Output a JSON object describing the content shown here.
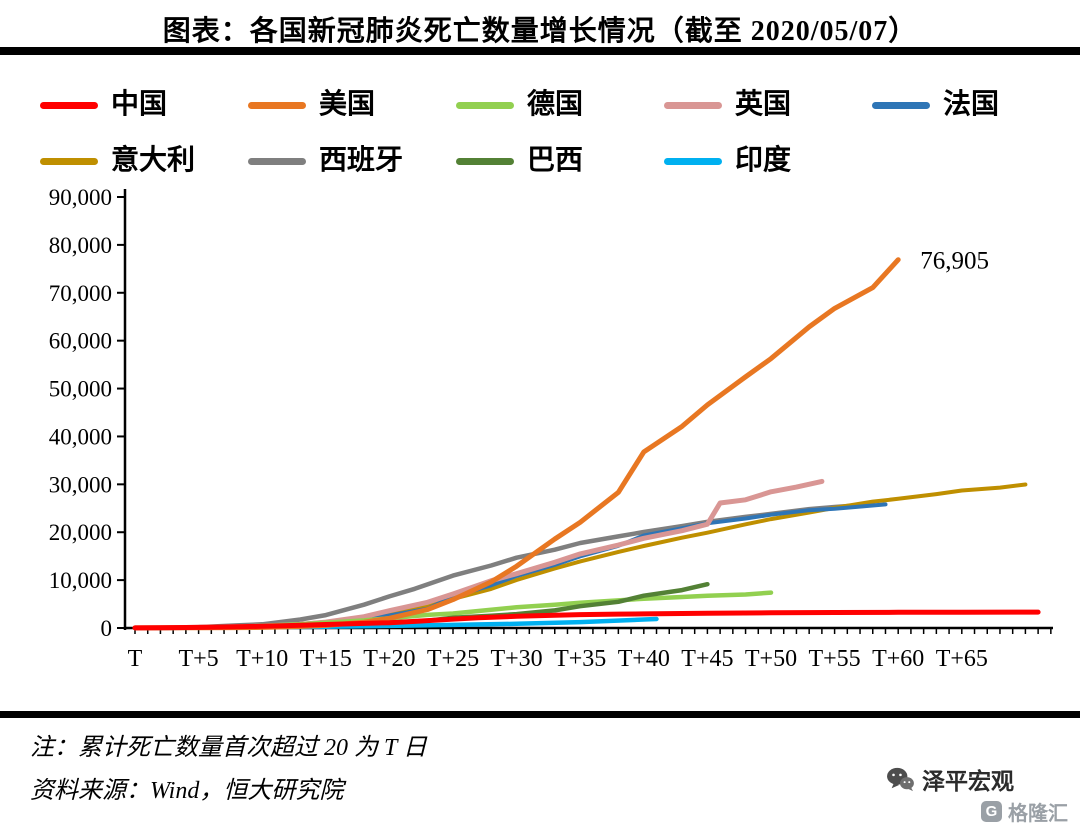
{
  "title": "图表：各国新冠肺炎死亡数量增长情况（截至 2020/05/07）",
  "notes": {
    "definition": "注：累计死亡数量首次超过 20 为 T 日",
    "source": "资料来源：Wind，恒大研究院"
  },
  "branding": {
    "zeping": "泽平宏观",
    "gelonghui": "格隆汇",
    "gelonghui_logo": "G"
  },
  "chart_data": {
    "type": "line",
    "title": "各国新冠肺炎死亡数量增长情况（截至 2020/05/07）",
    "xlabel": "",
    "ylabel": "",
    "grid": false,
    "legend_position": "top",
    "x_axis": {
      "labels": [
        "T",
        "T+5",
        "T+10",
        "T+15",
        "T+20",
        "T+25",
        "T+30",
        "T+35",
        "T+40",
        "T+45",
        "T+50",
        "T+55",
        "T+60",
        "T+65"
      ],
      "label_step": 5,
      "minor_tick_step": 1,
      "max": 72
    },
    "y_axis": {
      "min": 0,
      "max": 90000,
      "step": 10000,
      "labels": [
        "0",
        "10,000",
        "20,000",
        "30,000",
        "40,000",
        "50,000",
        "60,000",
        "70,000",
        "80,000",
        "90,000"
      ]
    },
    "annotation": {
      "text": "76,905",
      "x": 60,
      "y": 76905
    },
    "draw_order": [
      6,
      5,
      4,
      3,
      2,
      7,
      8,
      1,
      0
    ],
    "series": [
      {
        "id": "china",
        "name": "中国",
        "color": "#FF0000",
        "width": 5,
        "points": [
          [
            0,
            25
          ],
          [
            2,
            56
          ],
          [
            5,
            131
          ],
          [
            7,
            213
          ],
          [
            10,
            361
          ],
          [
            12,
            491
          ],
          [
            15,
            722
          ],
          [
            17,
            908
          ],
          [
            20,
            1117
          ],
          [
            22,
            1368
          ],
          [
            25,
            1868
          ],
          [
            27,
            2120
          ],
          [
            30,
            2442
          ],
          [
            33,
            2662
          ],
          [
            35,
            2788
          ],
          [
            38,
            2912
          ],
          [
            40,
            2943
          ],
          [
            45,
            3097
          ],
          [
            50,
            3176
          ],
          [
            55,
            3237
          ],
          [
            60,
            3270
          ],
          [
            65,
            3295
          ],
          [
            71,
            3326
          ]
        ]
      },
      {
        "id": "usa",
        "name": "美国",
        "color": "#E87722",
        "width": 5,
        "points": [
          [
            0,
            22
          ],
          [
            3,
            36
          ],
          [
            5,
            41
          ],
          [
            8,
            85
          ],
          [
            10,
            118
          ],
          [
            13,
            307
          ],
          [
            15,
            552
          ],
          [
            18,
            1201
          ],
          [
            20,
            2026
          ],
          [
            23,
            3873
          ],
          [
            25,
            5926
          ],
          [
            28,
            9619
          ],
          [
            30,
            12895
          ],
          [
            33,
            18586
          ],
          [
            35,
            22073
          ],
          [
            38,
            28326
          ],
          [
            40,
            36773
          ],
          [
            43,
            42094
          ],
          [
            45,
            46583
          ],
          [
            48,
            52459
          ],
          [
            50,
            56245
          ],
          [
            53,
            62906
          ],
          [
            55,
            66746
          ],
          [
            58,
            71078
          ],
          [
            60,
            76905
          ]
        ]
      },
      {
        "id": "germany",
        "name": "德国",
        "color": "#92D050",
        "width": 4.5,
        "points": [
          [
            0,
            26
          ],
          [
            3,
            68
          ],
          [
            5,
            123
          ],
          [
            8,
            267
          ],
          [
            10,
            433
          ],
          [
            13,
            775
          ],
          [
            15,
            1107
          ],
          [
            18,
            1584
          ],
          [
            20,
            2016
          ],
          [
            23,
            2736
          ],
          [
            25,
            3022
          ],
          [
            28,
            3804
          ],
          [
            30,
            4352
          ],
          [
            33,
            4862
          ],
          [
            35,
            5279
          ],
          [
            38,
            5760
          ],
          [
            40,
            6126
          ],
          [
            43,
            6467
          ],
          [
            45,
            6736
          ],
          [
            48,
            6993
          ],
          [
            50,
            7392
          ]
        ]
      },
      {
        "id": "uk",
        "name": "英国",
        "color": "#D99694",
        "width": 5,
        "points": [
          [
            0,
            21
          ],
          [
            3,
            71
          ],
          [
            5,
            144
          ],
          [
            8,
            281
          ],
          [
            10,
            422
          ],
          [
            13,
            759
          ],
          [
            15,
            1228
          ],
          [
            18,
            2352
          ],
          [
            20,
            3605
          ],
          [
            23,
            5373
          ],
          [
            25,
            7097
          ],
          [
            28,
            9875
          ],
          [
            30,
            11329
          ],
          [
            33,
            13729
          ],
          [
            35,
            15464
          ],
          [
            38,
            17337
          ],
          [
            40,
            18738
          ],
          [
            43,
            20319
          ],
          [
            45,
            21678
          ],
          [
            46,
            26097
          ],
          [
            48,
            26771
          ],
          [
            50,
            28446
          ],
          [
            52,
            29427
          ],
          [
            54,
            30615
          ]
        ]
      },
      {
        "id": "france",
        "name": "法国",
        "color": "#2E75B6",
        "width": 4,
        "points": [
          [
            0,
            25
          ],
          [
            3,
            61
          ],
          [
            5,
            91
          ],
          [
            8,
            244
          ],
          [
            10,
            372
          ],
          [
            13,
            674
          ],
          [
            15,
            1100
          ],
          [
            18,
            1995
          ],
          [
            20,
            2606
          ],
          [
            23,
            4032
          ],
          [
            25,
            6507
          ],
          [
            28,
            8911
          ],
          [
            30,
            10869
          ],
          [
            33,
            13197
          ],
          [
            35,
            14967
          ],
          [
            38,
            17167
          ],
          [
            40,
            19323
          ],
          [
            43,
            20796
          ],
          [
            45,
            21856
          ],
          [
            48,
            22856
          ],
          [
            50,
            23660
          ],
          [
            53,
            24594
          ],
          [
            55,
            24895
          ],
          [
            59,
            25809
          ]
        ]
      },
      {
        "id": "italy",
        "name": "意大利",
        "color": "#BF8F00",
        "width": 4,
        "points": [
          [
            0,
            21
          ],
          [
            3,
            52
          ],
          [
            5,
            79
          ],
          [
            8,
            197
          ],
          [
            10,
            366
          ],
          [
            13,
            827
          ],
          [
            15,
            1266
          ],
          [
            18,
            2158
          ],
          [
            20,
            2978
          ],
          [
            23,
            4825
          ],
          [
            25,
            6077
          ],
          [
            28,
            8165
          ],
          [
            30,
            10023
          ],
          [
            33,
            12428
          ],
          [
            35,
            13915
          ],
          [
            38,
            15887
          ],
          [
            40,
            17127
          ],
          [
            43,
            18849
          ],
          [
            45,
            19899
          ],
          [
            48,
            21645
          ],
          [
            50,
            22745
          ],
          [
            53,
            24114
          ],
          [
            55,
            25085
          ],
          [
            58,
            26384
          ],
          [
            60,
            26977
          ],
          [
            63,
            27967
          ],
          [
            65,
            28710
          ],
          [
            68,
            29315
          ],
          [
            70,
            29958
          ]
        ]
      },
      {
        "id": "spain",
        "name": "西班牙",
        "color": "#7F7F7F",
        "width": 4.5,
        "points": [
          [
            0,
            28
          ],
          [
            3,
            84
          ],
          [
            5,
            196
          ],
          [
            8,
            533
          ],
          [
            10,
            767
          ],
          [
            13,
            1772
          ],
          [
            15,
            2696
          ],
          [
            18,
            4858
          ],
          [
            20,
            6606
          ],
          [
            22,
            8189
          ],
          [
            25,
            10935
          ],
          [
            28,
            13055
          ],
          [
            30,
            14673
          ],
          [
            33,
            16353
          ],
          [
            35,
            17756
          ],
          [
            38,
            19130
          ],
          [
            40,
            20043
          ],
          [
            43,
            21282
          ],
          [
            45,
            22157
          ],
          [
            48,
            23190
          ],
          [
            50,
            23822
          ],
          [
            53,
            24824
          ],
          [
            55,
            25264
          ],
          [
            58,
            25857
          ]
        ]
      },
      {
        "id": "brazil",
        "name": "巴西",
        "color": "#538135",
        "width": 4.5,
        "points": [
          [
            0,
            25
          ],
          [
            3,
            59
          ],
          [
            5,
            111
          ],
          [
            8,
            201
          ],
          [
            10,
            299
          ],
          [
            13,
            486
          ],
          [
            15,
            667
          ],
          [
            18,
            941
          ],
          [
            20,
            1124
          ],
          [
            23,
            1532
          ],
          [
            25,
            2141
          ],
          [
            28,
            2575
          ],
          [
            30,
            2906
          ],
          [
            33,
            3670
          ],
          [
            35,
            4543
          ],
          [
            38,
            5466
          ],
          [
            40,
            6750
          ],
          [
            43,
            7921
          ],
          [
            45,
            9146
          ]
        ]
      },
      {
        "id": "india",
        "name": "印度",
        "color": "#00B0F0",
        "width": 4.5,
        "points": [
          [
            0,
            20
          ],
          [
            5,
            53
          ],
          [
            10,
            136
          ],
          [
            15,
            273
          ],
          [
            20,
            448
          ],
          [
            25,
            645
          ],
          [
            30,
            881
          ],
          [
            35,
            1236
          ],
          [
            40,
            1785
          ],
          [
            41,
            1886
          ]
        ]
      }
    ]
  }
}
